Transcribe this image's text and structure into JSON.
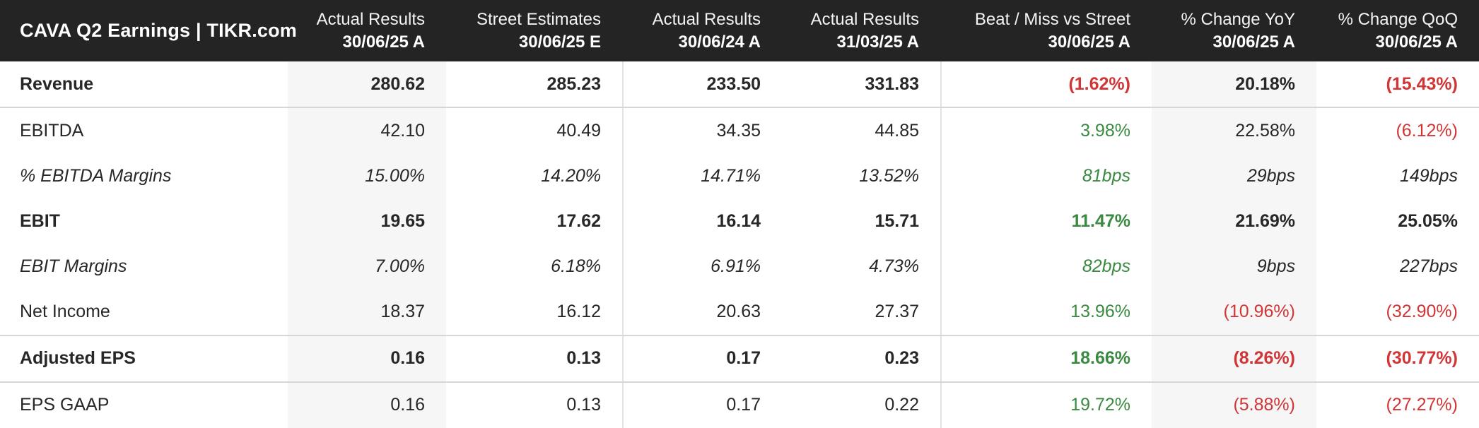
{
  "header": {
    "title": "CAVA Q2 Earnings | TIKR.com",
    "columns": [
      {
        "line1": "Actual Results",
        "line2": "30/06/25 A"
      },
      {
        "line1": "Street Estimates",
        "line2": "30/06/25 E"
      },
      {
        "line1": "Actual Results",
        "line2": "30/06/24 A"
      },
      {
        "line1": "Actual Results",
        "line2": "31/03/25 A"
      },
      {
        "line1": "Beat / Miss vs Street",
        "line2": "30/06/25 A"
      },
      {
        "line1": "% Change YoY",
        "line2": "30/06/25 A"
      },
      {
        "line1": "% Change QoQ",
        "line2": "30/06/25 A"
      }
    ]
  },
  "colors": {
    "header_bg": "#242424",
    "positive_green": "#3a8a41",
    "negative_red": "#d03636",
    "text_dark": "#272727",
    "stripe_gray": "#f6f6f6",
    "row_divider": "#d6d6d6",
    "column_divider": "#e2e2e2"
  },
  "table": {
    "rows": [
      {
        "label": "Revenue",
        "style": "bold",
        "border_bottom": true,
        "values": [
          {
            "text": "280.62",
            "color": "dark"
          },
          {
            "text": "285.23",
            "color": "dark"
          },
          {
            "text": "233.50",
            "color": "dark"
          },
          {
            "text": "331.83",
            "color": "dark"
          },
          {
            "text": "(1.62%)",
            "color": "red"
          },
          {
            "text": "20.18%",
            "color": "dark"
          },
          {
            "text": "(15.43%)",
            "color": "red"
          }
        ]
      },
      {
        "label": "EBITDA",
        "style": "normal",
        "border_bottom": false,
        "values": [
          {
            "text": "42.10",
            "color": "dark"
          },
          {
            "text": "40.49",
            "color": "dark"
          },
          {
            "text": "34.35",
            "color": "dark"
          },
          {
            "text": "44.85",
            "color": "dark"
          },
          {
            "text": "3.98%",
            "color": "green"
          },
          {
            "text": "22.58%",
            "color": "dark"
          },
          {
            "text": "(6.12%)",
            "color": "red"
          }
        ]
      },
      {
        "label": "% EBITDA Margins",
        "style": "italic",
        "border_bottom": false,
        "values": [
          {
            "text": "15.00%",
            "color": "dark"
          },
          {
            "text": "14.20%",
            "color": "dark"
          },
          {
            "text": "14.71%",
            "color": "dark"
          },
          {
            "text": "13.52%",
            "color": "dark"
          },
          {
            "text": "81bps",
            "color": "green"
          },
          {
            "text": "29bps",
            "color": "dark"
          },
          {
            "text": "149bps",
            "color": "dark"
          }
        ]
      },
      {
        "label": "EBIT",
        "style": "bold",
        "border_bottom": false,
        "values": [
          {
            "text": "19.65",
            "color": "dark"
          },
          {
            "text": "17.62",
            "color": "dark"
          },
          {
            "text": "16.14",
            "color": "dark"
          },
          {
            "text": "15.71",
            "color": "dark"
          },
          {
            "text": "11.47%",
            "color": "green"
          },
          {
            "text": "21.69%",
            "color": "dark"
          },
          {
            "text": "25.05%",
            "color": "dark"
          }
        ]
      },
      {
        "label": "EBIT Margins",
        "style": "italic",
        "border_bottom": false,
        "values": [
          {
            "text": "7.00%",
            "color": "dark"
          },
          {
            "text": "6.18%",
            "color": "dark"
          },
          {
            "text": "6.91%",
            "color": "dark"
          },
          {
            "text": "4.73%",
            "color": "dark"
          },
          {
            "text": "82bps",
            "color": "green"
          },
          {
            "text": "9bps",
            "color": "dark"
          },
          {
            "text": "227bps",
            "color": "dark"
          }
        ]
      },
      {
        "label": "Net Income",
        "style": "normal",
        "border_bottom": true,
        "values": [
          {
            "text": "18.37",
            "color": "dark"
          },
          {
            "text": "16.12",
            "color": "dark"
          },
          {
            "text": "20.63",
            "color": "dark"
          },
          {
            "text": "27.37",
            "color": "dark"
          },
          {
            "text": "13.96%",
            "color": "green"
          },
          {
            "text": "(10.96%)",
            "color": "red"
          },
          {
            "text": "(32.90%)",
            "color": "red"
          }
        ]
      },
      {
        "label": "Adjusted EPS",
        "style": "bold",
        "border_bottom": true,
        "values": [
          {
            "text": "0.16",
            "color": "dark"
          },
          {
            "text": "0.13",
            "color": "dark"
          },
          {
            "text": "0.17",
            "color": "dark"
          },
          {
            "text": "0.23",
            "color": "dark"
          },
          {
            "text": "18.66%",
            "color": "green"
          },
          {
            "text": "(8.26%)",
            "color": "red"
          },
          {
            "text": "(30.77%)",
            "color": "red"
          }
        ]
      },
      {
        "label": "EPS GAAP",
        "style": "normal",
        "border_bottom": false,
        "values": [
          {
            "text": "0.16",
            "color": "dark"
          },
          {
            "text": "0.13",
            "color": "dark"
          },
          {
            "text": "0.17",
            "color": "dark"
          },
          {
            "text": "0.22",
            "color": "dark"
          },
          {
            "text": "19.72%",
            "color": "green"
          },
          {
            "text": "(5.88%)",
            "color": "red"
          },
          {
            "text": "(27.27%)",
            "color": "red"
          }
        ]
      }
    ]
  },
  "chart_data": {
    "type": "table",
    "title": "CAVA Q2 Earnings | TIKR.com",
    "columns": [
      "Actual Results 30/06/25 A",
      "Street Estimates 30/06/25 E",
      "Actual Results 30/06/24 A",
      "Actual Results 31/03/25 A",
      "Beat / Miss vs Street 30/06/25 A",
      "% Change YoY 30/06/25 A",
      "% Change QoQ 30/06/25 A"
    ],
    "rows": [
      {
        "metric": "Revenue",
        "values": [
          "280.62",
          "285.23",
          "233.50",
          "331.83",
          "(1.62%)",
          "20.18%",
          "(15.43%)"
        ]
      },
      {
        "metric": "EBITDA",
        "values": [
          "42.10",
          "40.49",
          "34.35",
          "44.85",
          "3.98%",
          "22.58%",
          "(6.12%)"
        ]
      },
      {
        "metric": "% EBITDA Margins",
        "values": [
          "15.00%",
          "14.20%",
          "14.71%",
          "13.52%",
          "81bps",
          "29bps",
          "149bps"
        ]
      },
      {
        "metric": "EBIT",
        "values": [
          "19.65",
          "17.62",
          "16.14",
          "15.71",
          "11.47%",
          "21.69%",
          "25.05%"
        ]
      },
      {
        "metric": "EBIT Margins",
        "values": [
          "7.00%",
          "6.18%",
          "6.91%",
          "4.73%",
          "82bps",
          "9bps",
          "227bps"
        ]
      },
      {
        "metric": "Net Income",
        "values": [
          "18.37",
          "16.12",
          "20.63",
          "27.37",
          "13.96%",
          "(10.96%)",
          "(32.90%)"
        ]
      },
      {
        "metric": "Adjusted EPS",
        "values": [
          "0.16",
          "0.13",
          "0.17",
          "0.23",
          "18.66%",
          "(8.26%)",
          "(30.77%)"
        ]
      },
      {
        "metric": "EPS GAAP",
        "values": [
          "0.16",
          "0.13",
          "0.17",
          "0.22",
          "19.72%",
          "(5.88%)",
          "(27.27%)"
        ]
      }
    ]
  }
}
